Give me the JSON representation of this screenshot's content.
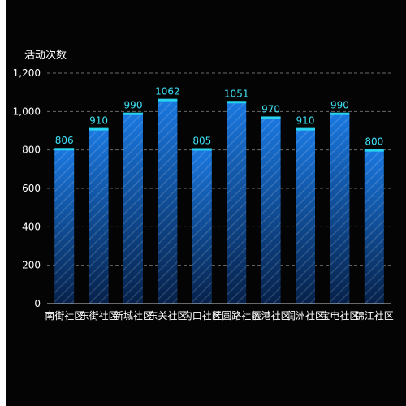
{
  "chart_data": {
    "type": "bar",
    "ylabel": "活动次数",
    "ylim": [
      0,
      1200
    ],
    "yticks": [
      0,
      200,
      400,
      600,
      800,
      1000,
      1200
    ],
    "ytick_labels": [
      "0",
      "200",
      "400",
      "600",
      "800",
      "1,000",
      "1,200"
    ],
    "categories": [
      "南街社区",
      "东街社区",
      "新城社区",
      "东关社区",
      "沟口社区",
      "桂圆路社区",
      "振港社区",
      "润洲社区",
      "宝电社区",
      "锦江社区"
    ],
    "values": [
      806,
      910,
      990,
      1062,
      805,
      1051,
      970,
      910,
      990,
      800
    ],
    "value_labels": [
      "806",
      "910",
      "990",
      "1062",
      "805",
      "1051",
      "970",
      "910",
      "990",
      "800"
    ],
    "grid": true,
    "colors": {
      "bar_top": "#1a78e0",
      "bar_bottom": "#06214a",
      "bar_cap": "#27d3ee",
      "value_label": "#3fe0f5",
      "grid": "#6a6a6a",
      "background": "#040404"
    }
  }
}
